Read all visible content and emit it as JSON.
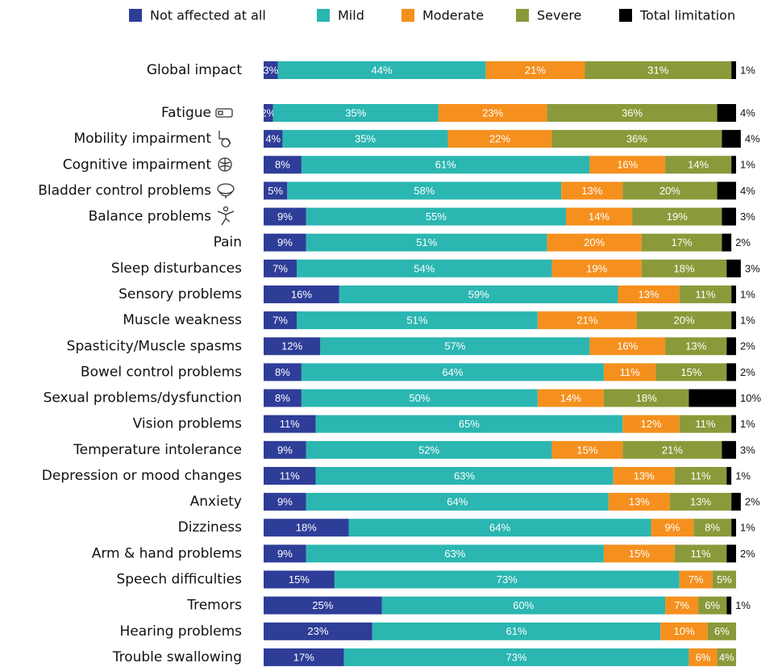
{
  "chart_data": {
    "type": "stacked-barh",
    "categories": [
      "Global impact",
      "Fatigue",
      "Mobility impairment",
      "Cognitive impairment",
      "Bladder control problems",
      "Balance problems",
      "Pain",
      "Sleep disturbances",
      "Sensory problems",
      "Muscle weakness",
      "Spasticity/Muscle spasms",
      "Bowel control problems",
      "Sexual problems/dysfunction",
      "Vision problems",
      "Temperature intolerance",
      "Depression or mood changes",
      "Anxiety",
      "Dizziness",
      "Arm & hand problems",
      "Speech difficulties",
      "Tremors",
      "Hearing problems",
      "Trouble swallowing"
    ],
    "xlim": [
      0,
      100
    ],
    "legend": "top",
    "series": [
      {
        "name": "Not affected at all",
        "color": "#2e3d98",
        "values": [
          3,
          2,
          4,
          8,
          5,
          9,
          9,
          7,
          16,
          7,
          12,
          8,
          8,
          11,
          9,
          11,
          9,
          18,
          9,
          15,
          25,
          23,
          17
        ],
        "value_labels": [
          "3%",
          "2%",
          "4%",
          "8%",
          "5%",
          "9%",
          "9%",
          "7%",
          "16%",
          "7%",
          "12%",
          "8%",
          "8%",
          "11%",
          "9%",
          "11%",
          "9%",
          "18%",
          "9%",
          "15%",
          "25%",
          "23%",
          "17%"
        ]
      },
      {
        "name": "Mild",
        "color": "#2bb6b1",
        "values": [
          44,
          35,
          35,
          61,
          58,
          55,
          51,
          54,
          59,
          51,
          57,
          64,
          50,
          65,
          52,
          63,
          64,
          64,
          63,
          73,
          60,
          61,
          73
        ],
        "value_labels": [
          "44%",
          "35%",
          "35%",
          "61%",
          "58%",
          "55%",
          "51%",
          "54%",
          "59%",
          "51%",
          "57%",
          "64%",
          "50%",
          "65%",
          "52%",
          "63%",
          "64%",
          "64%",
          "63%",
          "73%",
          "60%",
          "61%",
          "73%"
        ]
      },
      {
        "name": "Moderate",
        "color": "#f5901e",
        "values": [
          21,
          23,
          22,
          16,
          13,
          14,
          20,
          19,
          13,
          21,
          16,
          11,
          14,
          12,
          15,
          13,
          13,
          9,
          15,
          7,
          7,
          10,
          6
        ],
        "value_labels": [
          "21%",
          "23%",
          "22%",
          "16%",
          "13%",
          "14%",
          "20%",
          "19%",
          "13%",
          "21%",
          "16%",
          "11%",
          "14%",
          "12%",
          "15%",
          "13%",
          "13%",
          "9%",
          "15%",
          "7%",
          "7%",
          "10%",
          "6%"
        ]
      },
      {
        "name": "Severe",
        "color": "#8a9a3a",
        "values": [
          31,
          36,
          36,
          14,
          20,
          19,
          17,
          18,
          11,
          20,
          13,
          15,
          18,
          11,
          21,
          11,
          13,
          8,
          11,
          5,
          6,
          6,
          4
        ],
        "value_labels": [
          "31%",
          "36%",
          "36%",
          "14%",
          "20%",
          "19%",
          "17%",
          "18%",
          "11%",
          "20%",
          "13%",
          "15%",
          "18%",
          "11%",
          "21%",
          "11%",
          "13%",
          "8%",
          "11%",
          "5%",
          "6%",
          "6%",
          "4%"
        ]
      },
      {
        "name": "Total limitation",
        "color": "#000000",
        "values": [
          1,
          4,
          4,
          1,
          4,
          3,
          2,
          3,
          1,
          1,
          2,
          2,
          10,
          1,
          3,
          1,
          2,
          1,
          2,
          null,
          1,
          null,
          null
        ],
        "value_labels": [
          "1%",
          "4%",
          "4%",
          "1%",
          "4%",
          "3%",
          "2%",
          "3%",
          "1%",
          "1%",
          "2%",
          "2%",
          "10%",
          "1%",
          "3%",
          "1%",
          "2%",
          "1%",
          "2%",
          null,
          "1%",
          null,
          null
        ]
      }
    ]
  }
}
